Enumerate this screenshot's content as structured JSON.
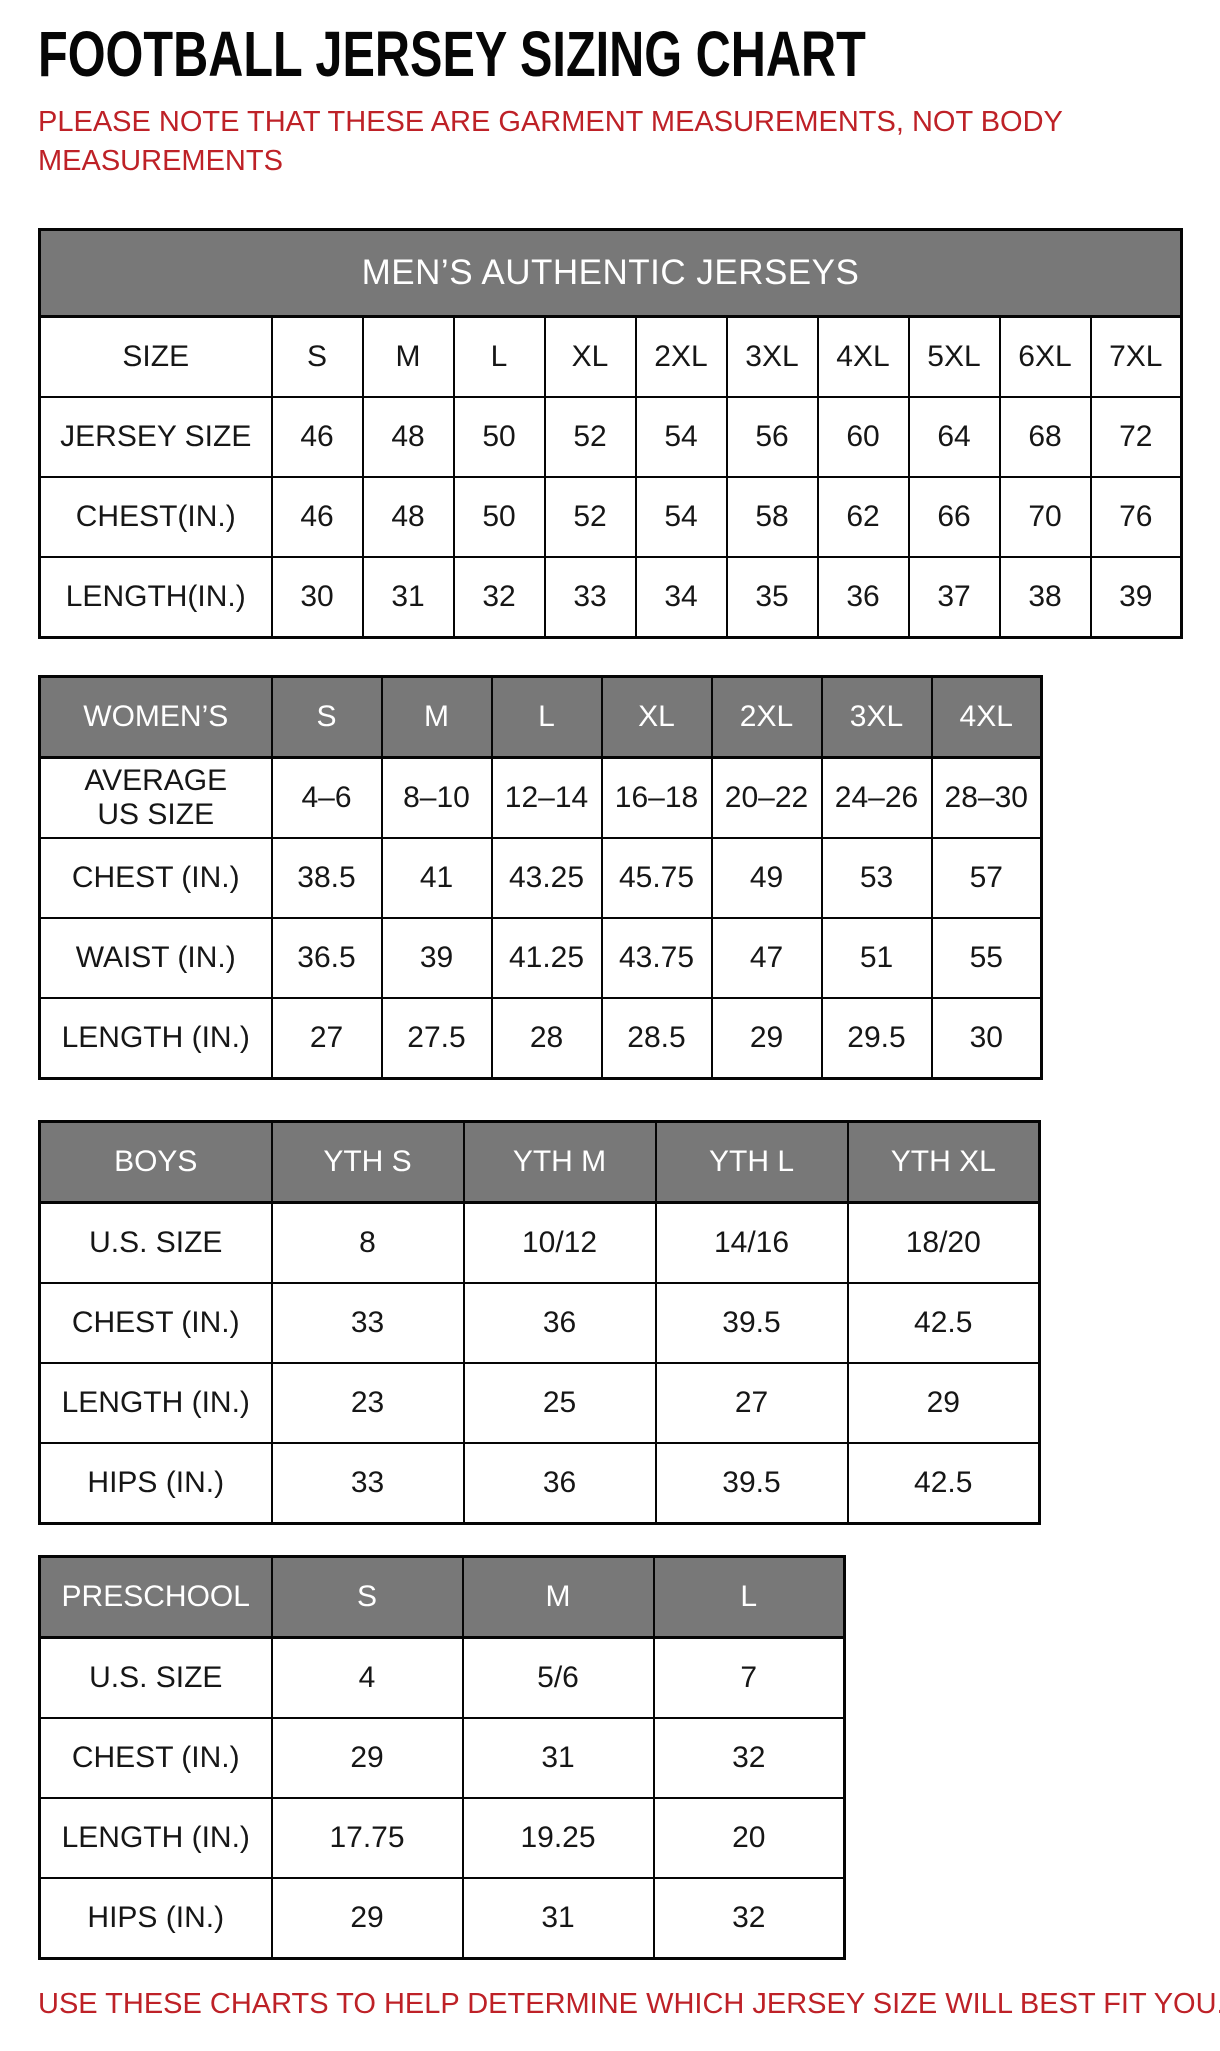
{
  "page": {
    "title": "FOOTBALL JERSEY SIZING CHART",
    "note": "PLEASE NOTE THAT THESE ARE GARMENT MEASUREMENTS, NOT BODY\nMEASUREMENTS",
    "footer": "USE THESE CHARTS TO HELP DETERMINE WHICH JERSEY SIZE WILL BEST FIT YOU.",
    "colors": {
      "accent_red": "#be2127",
      "header_gray": "#787878",
      "border_black": "#050505"
    }
  },
  "tables": {
    "mens": {
      "banner": "MEN’S AUTHENTIC JERSEYS",
      "rows": [
        [
          "SIZE",
          "S",
          "M",
          "L",
          "XL",
          "2XL",
          "3XL",
          "4XL",
          "5XL",
          "6XL",
          "7XL"
        ],
        [
          "JERSEY SIZE",
          "46",
          "48",
          "50",
          "52",
          "54",
          "56",
          "60",
          "64",
          "68",
          "72"
        ],
        [
          "CHEST(IN.)",
          "46",
          "48",
          "50",
          "52",
          "54",
          "58",
          "62",
          "66",
          "70",
          "76"
        ],
        [
          "LENGTH(IN.)",
          "30",
          "31",
          "32",
          "33",
          "34",
          "35",
          "36",
          "37",
          "38",
          "39"
        ]
      ]
    },
    "womens": {
      "header": [
        "WOMEN’S",
        "S",
        "M",
        "L",
        "XL",
        "2XL",
        "3XL",
        "4XL"
      ],
      "rows": [
        [
          "AVERAGE\nUS SIZE",
          "4–6",
          "8–10",
          "12–14",
          "16–18",
          "20–22",
          "24–26",
          "28–30"
        ],
        [
          "CHEST (IN.)",
          "38.5",
          "41",
          "43.25",
          "45.75",
          "49",
          "53",
          "57"
        ],
        [
          "WAIST (IN.)",
          "36.5",
          "39",
          "41.25",
          "43.75",
          "47",
          "51",
          "55"
        ],
        [
          "LENGTH (IN.)",
          "27",
          "27.5",
          "28",
          "28.5",
          "29",
          "29.5",
          "30"
        ]
      ]
    },
    "boys": {
      "header": [
        "BOYS",
        "YTH S",
        "YTH M",
        "YTH L",
        "YTH XL"
      ],
      "rows": [
        [
          "U.S. SIZE",
          "8",
          "10/12",
          "14/16",
          "18/20"
        ],
        [
          "CHEST (IN.)",
          "33",
          "36",
          "39.5",
          "42.5"
        ],
        [
          "LENGTH (IN.)",
          "23",
          "25",
          "27",
          "29"
        ],
        [
          "HIPS (IN.)",
          "33",
          "36",
          "39.5",
          "42.5"
        ]
      ]
    },
    "preschool": {
      "header": [
        "PRESCHOOL",
        "S",
        "M",
        "L"
      ],
      "rows": [
        [
          "U.S. SIZE",
          "4",
          "5/6",
          "7"
        ],
        [
          "CHEST (IN.)",
          "29",
          "31",
          "32"
        ],
        [
          "LENGTH (IN.)",
          "17.75",
          "19.25",
          "20"
        ],
        [
          "HIPS (IN.)",
          "29",
          "31",
          "32"
        ]
      ]
    }
  }
}
